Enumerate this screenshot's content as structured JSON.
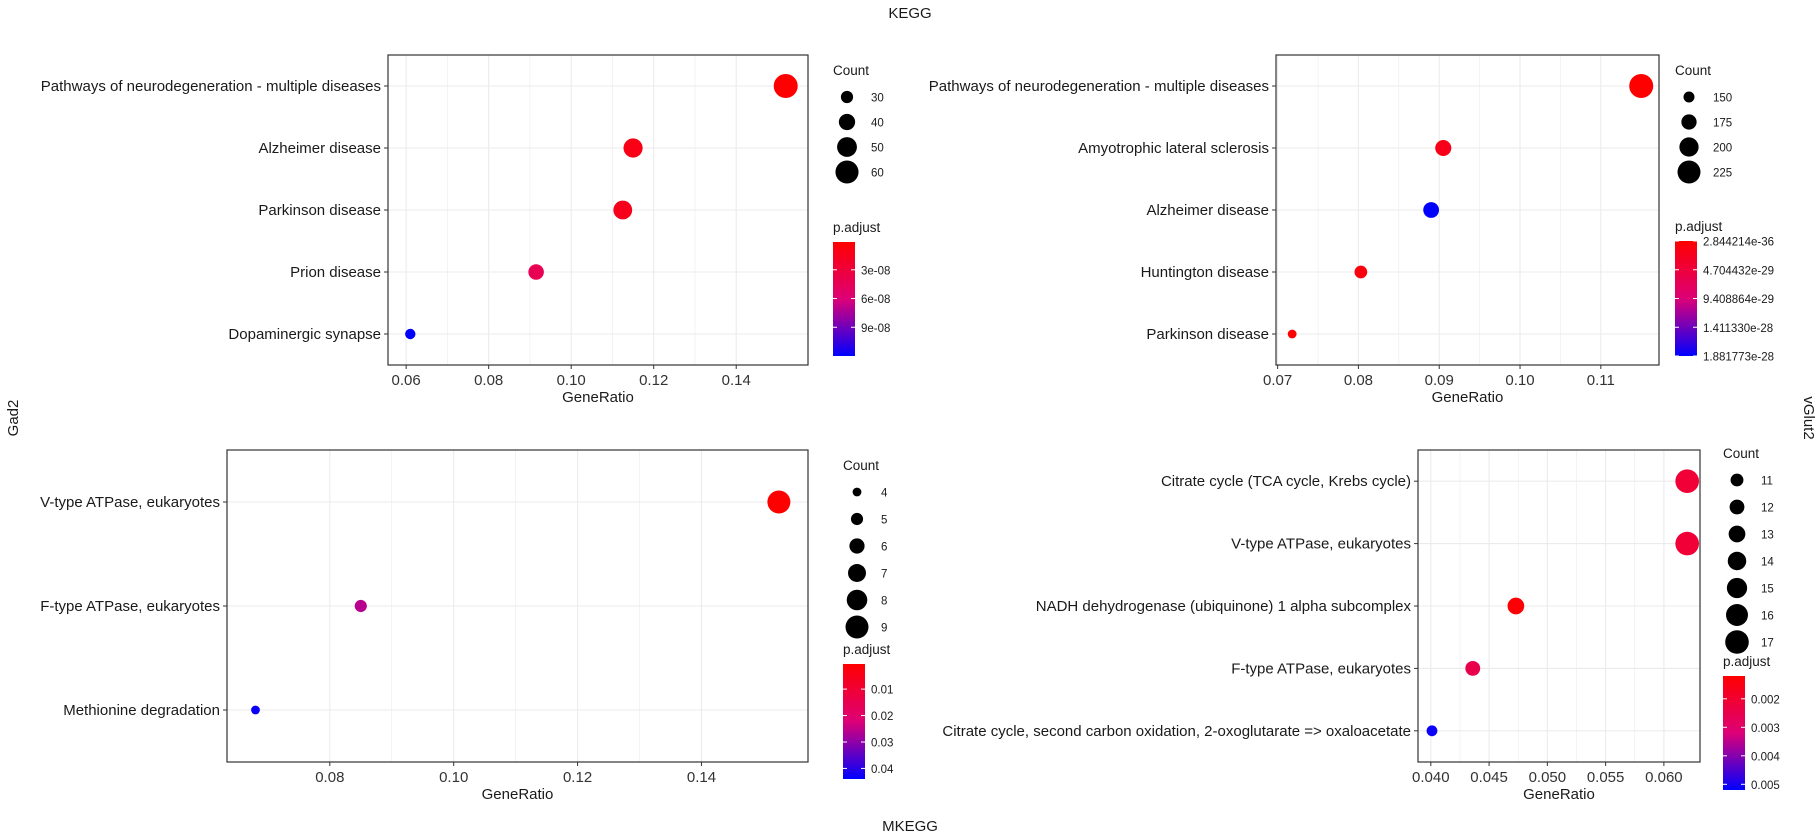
{
  "figure": {
    "top_label": "KEGG",
    "bottom_label": "MKEGG",
    "left_label": "Gad2",
    "right_label": "vGlut2"
  },
  "colors": {
    "low": "#FF0000",
    "mid": "#DD0077",
    "high": "#0000FF",
    "grid": "#EBEBEB"
  },
  "chart_data": [
    {
      "type": "scatter",
      "xlabel": "GeneRatio",
      "xlim": [
        0.0556,
        0.1574
      ],
      "xticks": [
        0.06,
        0.08,
        0.1,
        0.12,
        0.14
      ],
      "xtick_labels": [
        "0.06",
        "0.08",
        "0.10",
        "0.12",
        "0.14"
      ],
      "categories": [
        "Pathways of neurodegeneration - multiple diseases",
        "Alzheimer disease",
        "Parkinson disease",
        "Prion disease",
        "Dopaminergic synapse"
      ],
      "x": [
        0.152,
        0.115,
        0.1125,
        0.0915,
        0.061
      ],
      "count": [
        63,
        48,
        47,
        38,
        26
      ],
      "p_adjust": [
        1e-09,
        1.2e-08,
        1.5e-08,
        4.2e-08,
        1.2e-07
      ],
      "size_legend": {
        "title": "Count",
        "values": [
          30,
          40,
          50,
          60
        ],
        "labels": [
          "30",
          "40",
          "50",
          "60"
        ]
      },
      "color_legend": {
        "title": "p.adjust",
        "min": 1e-09,
        "max": 1.2e-07,
        "ticks": [
          3e-08,
          6e-08,
          9e-08
        ],
        "tick_labels": [
          "3e-08",
          "6e-08",
          "9e-08"
        ]
      }
    },
    {
      "type": "scatter",
      "xlabel": "GeneRatio",
      "xlim": [
        0.0698,
        0.1172
      ],
      "xticks": [
        0.07,
        0.08,
        0.09,
        0.1,
        0.11
      ],
      "xtick_labels": [
        "0.07",
        "0.08",
        "0.09",
        "0.10",
        "0.11"
      ],
      "categories": [
        "Pathways of neurodegeneration - multiple diseases",
        "Amyotrophic lateral sclerosis",
        "Alzheimer disease",
        "Huntington disease",
        "Parkinson disease"
      ],
      "x": [
        0.115,
        0.0905,
        0.089,
        0.0803,
        0.0718
      ],
      "count": [
        232,
        180,
        178,
        160,
        138
      ],
      "p_adjust": [
        2.844214e-36,
        2e-29,
        1.881773e-28,
        1e-29,
        1e-30
      ],
      "size_legend": {
        "title": "Count",
        "values": [
          150,
          175,
          200,
          225
        ],
        "labels": [
          "150",
          "175",
          "200",
          "225"
        ]
      },
      "color_legend": {
        "title": "p.adjust",
        "min": 2.844214e-36,
        "max": 1.881773e-28,
        "ticks": [
          2.844214e-36,
          4.704432e-29,
          9.408864e-29,
          1.41133e-28,
          1.881773e-28
        ],
        "tick_labels": [
          "2.844214e-36",
          "4.704432e-29",
          "9.408864e-29",
          "1.411330e-28",
          "1.881773e-28"
        ]
      }
    },
    {
      "type": "scatter",
      "xlabel": "GeneRatio",
      "xlim": [
        0.0634,
        0.1572
      ],
      "xticks": [
        0.08,
        0.1,
        0.12,
        0.14
      ],
      "xtick_labels": [
        "0.08",
        "0.10",
        "0.12",
        "0.14"
      ],
      "categories": [
        "V-type ATPase, eukaryotes",
        "F-type ATPase, eukaryotes",
        "Methionine degradation"
      ],
      "x": [
        0.1525,
        0.085,
        0.068
      ],
      "count": [
        9,
        5,
        4
      ],
      "p_adjust": [
        0.0005,
        0.026,
        0.043
      ],
      "size_legend": {
        "title": "Count",
        "values": [
          4,
          5,
          6,
          7,
          8,
          9
        ],
        "labels": [
          "4",
          "5",
          "6",
          "7",
          "8",
          "9"
        ]
      },
      "color_legend": {
        "title": "p.adjust",
        "min": 0.0005,
        "max": 0.044,
        "ticks": [
          0.01,
          0.02,
          0.03,
          0.04
        ],
        "tick_labels": [
          "0.01",
          "0.02",
          "0.03",
          "0.04"
        ]
      }
    },
    {
      "type": "scatter",
      "xlabel": "GeneRatio",
      "xlim": [
        0.0389,
        0.0631
      ],
      "xticks": [
        0.04,
        0.045,
        0.05,
        0.055,
        0.06
      ],
      "xtick_labels": [
        "0.040",
        "0.045",
        "0.050",
        "0.055",
        "0.060"
      ],
      "categories": [
        "Citrate cycle (TCA cycle, Krebs cycle)",
        "V-type ATPase, eukaryotes",
        "NADH dehydrogenase (ubiquinone) 1 alpha subcomplex",
        "F-type ATPase, eukaryotes",
        "Citrate cycle, second carbon oxidation, 2-oxoglutarate => oxaloacetate"
      ],
      "x": [
        0.062,
        0.062,
        0.0473,
        0.0436,
        0.0401
      ],
      "count": [
        17,
        17,
        13,
        12,
        10
      ],
      "p_adjust": [
        0.0021,
        0.0021,
        0.0013,
        0.0025,
        0.0051
      ],
      "size_legend": {
        "title": "Count",
        "values": [
          11,
          12,
          13,
          14,
          15,
          16,
          17
        ],
        "labels": [
          "11",
          "12",
          "13",
          "14",
          "15",
          "16",
          "17"
        ]
      },
      "color_legend": {
        "title": "p.adjust",
        "min": 0.0012,
        "max": 0.0052,
        "ticks": [
          0.002,
          0.003,
          0.004,
          0.005
        ],
        "tick_labels": [
          "0.002",
          "0.003",
          "0.004",
          "0.005"
        ]
      }
    }
  ]
}
